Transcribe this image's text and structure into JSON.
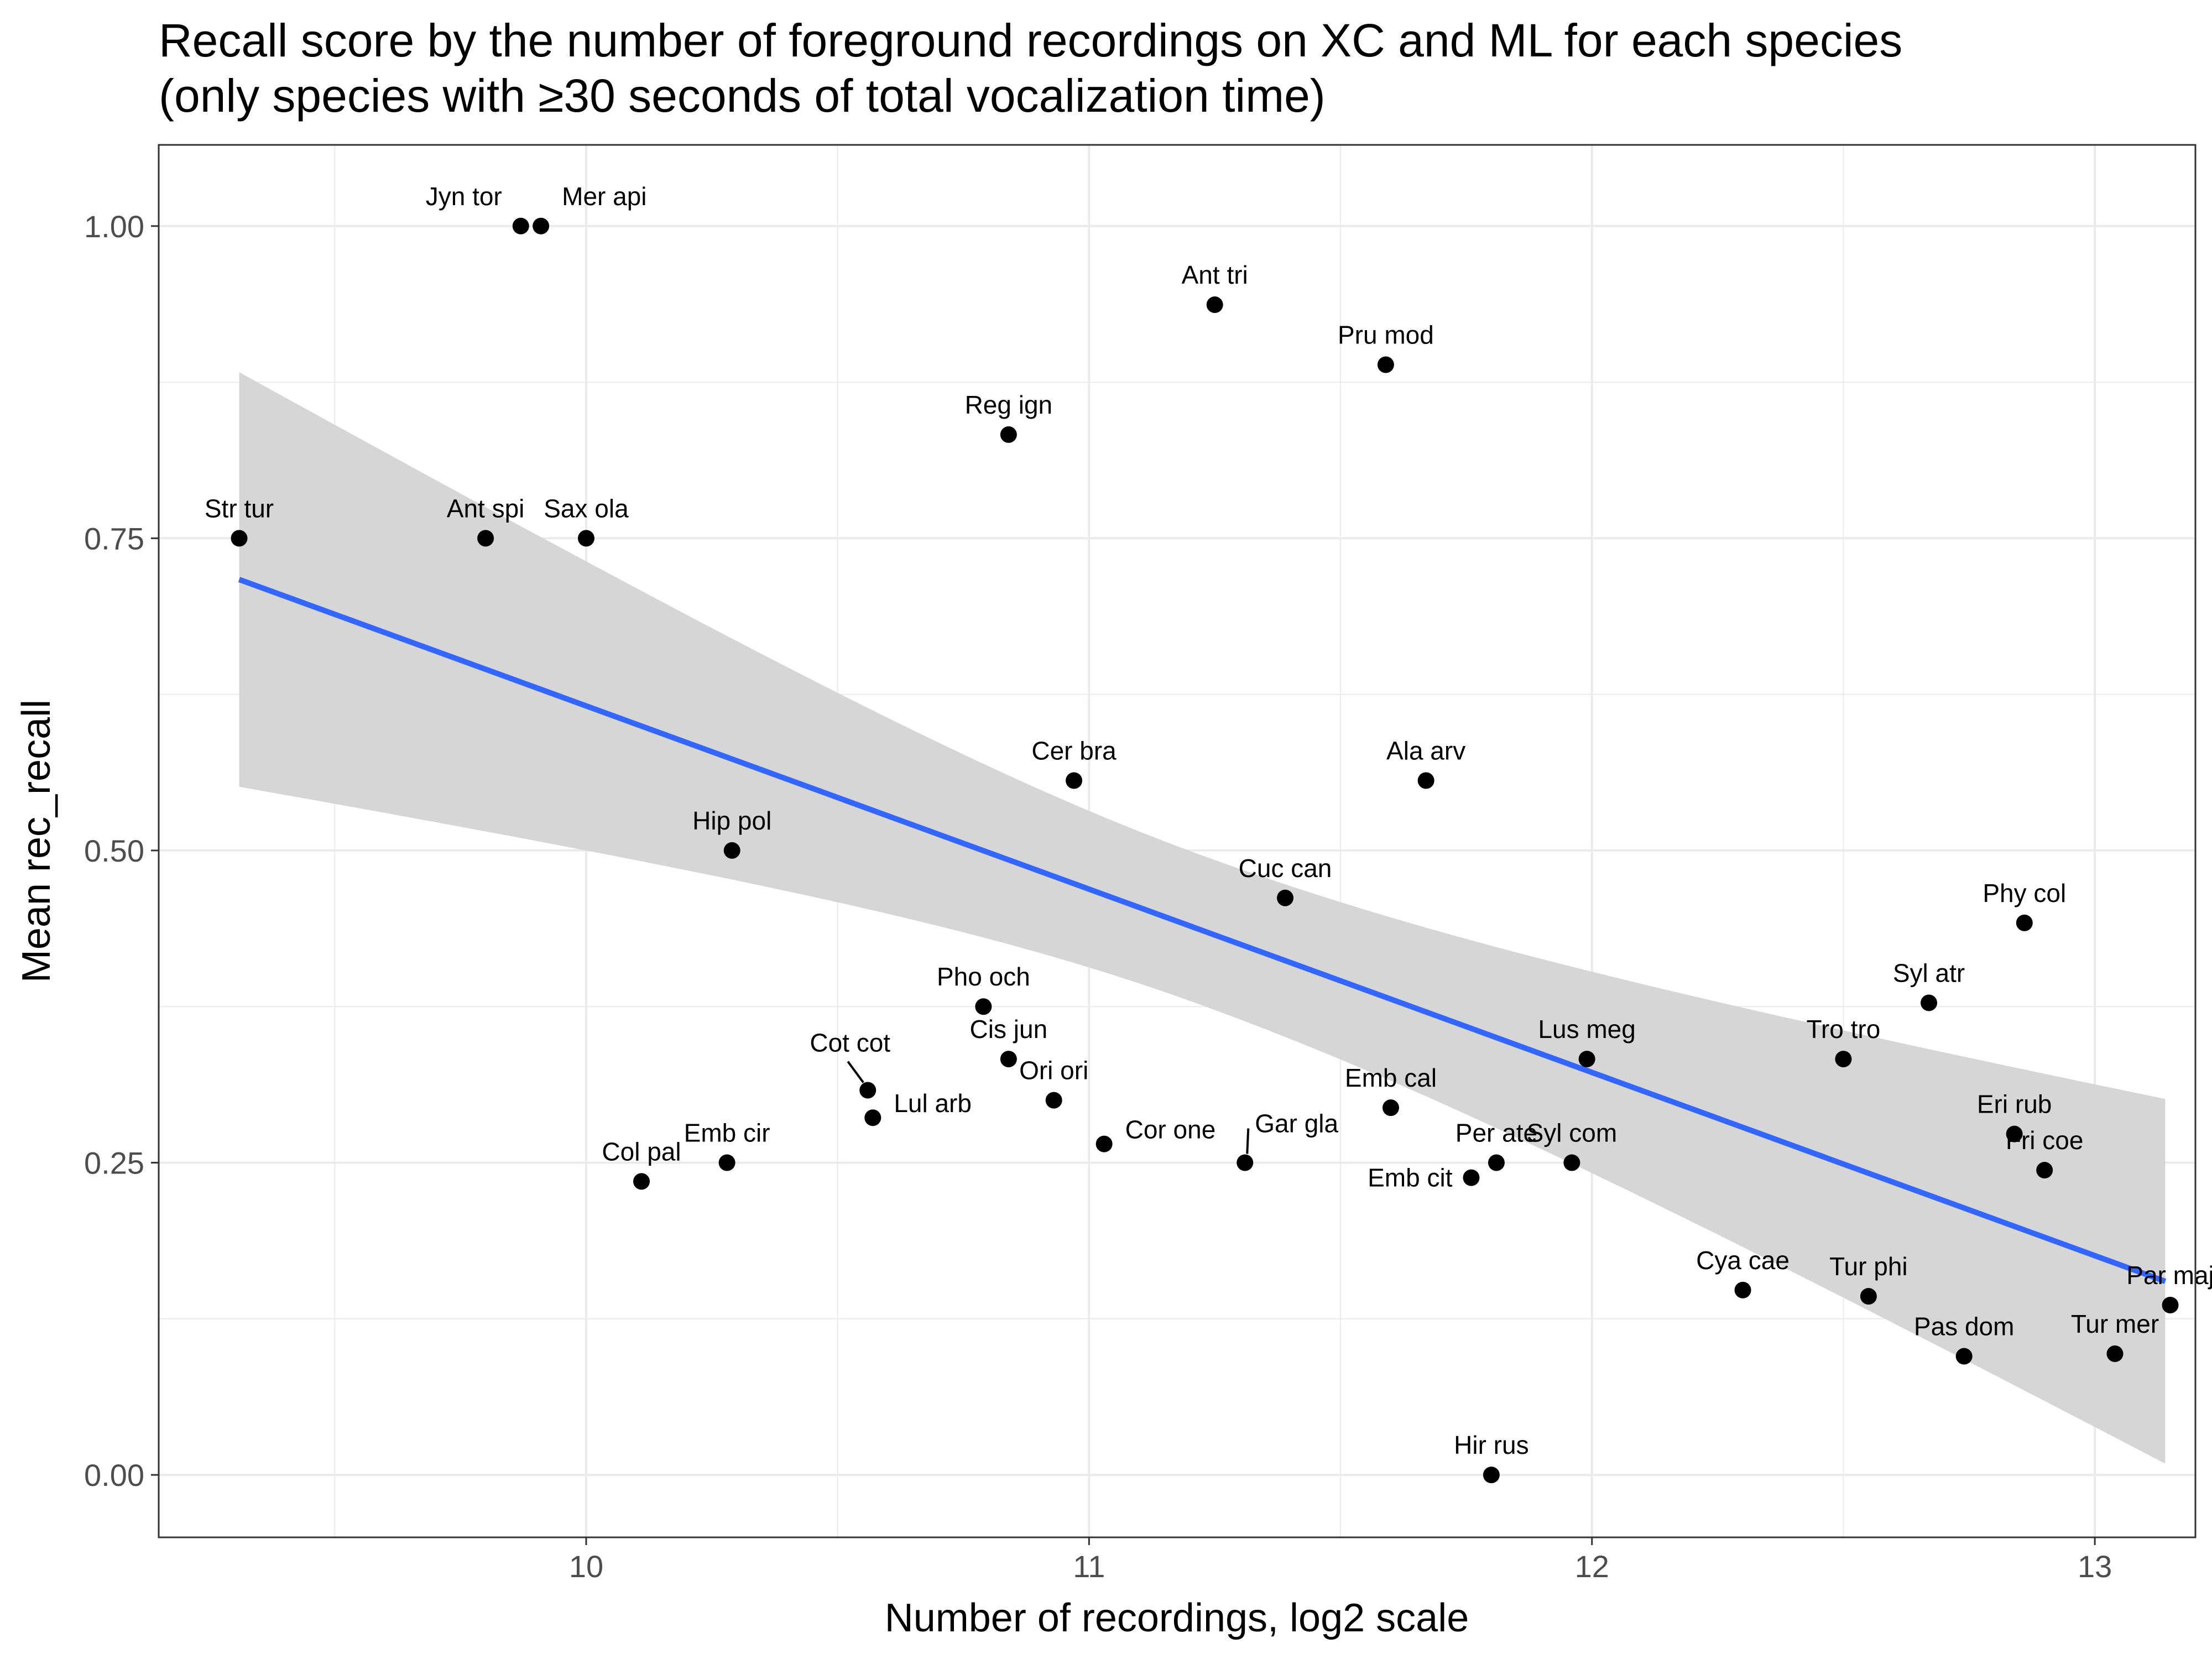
{
  "chart_data": {
    "type": "scatter",
    "title": "Recall score by the number of foreground recordings on XC and ML for each species",
    "subtitle": "(only species with ≥30 seconds of total vocalization time)",
    "xlabel": "Number of recordings, log2 scale",
    "ylabel": "Mean rec_recall",
    "xlim": [
      9.15,
      13.2
    ],
    "ylim": [
      -0.05,
      1.065
    ],
    "xticks": [
      10,
      11,
      12,
      13
    ],
    "xtick_labels": [
      "10",
      "11",
      "12",
      "13"
    ],
    "yticks": [
      0,
      0.25,
      0.5,
      0.75,
      1.0
    ],
    "ytick_labels": [
      "0.00",
      "0.25",
      "0.50",
      "0.75",
      "1.00"
    ],
    "grid": true,
    "theme": "bw",
    "point_color": "#000000",
    "trend": {
      "method": "linear",
      "color": "#3366ff",
      "band_color": "#d6d6d6",
      "x": [
        9.31,
        13.14
      ],
      "y": [
        0.717,
        0.155
      ],
      "band_lower": [
        0.552,
        0.008
      ],
      "band_upper": [
        0.884,
        0.3
      ]
    },
    "points": [
      {
        "label": "Jyn tor",
        "x": 9.87,
        "y": 1.0
      },
      {
        "label": "Mer api",
        "x": 9.91,
        "y": 1.0
      },
      {
        "label": "Ant tri",
        "x": 11.25,
        "y": 0.937
      },
      {
        "label": "Pru mod",
        "x": 11.59,
        "y": 0.889
      },
      {
        "label": "Reg ign",
        "x": 10.84,
        "y": 0.833
      },
      {
        "label": "Str tur",
        "x": 9.31,
        "y": 0.75
      },
      {
        "label": "Ant spi",
        "x": 9.8,
        "y": 0.75
      },
      {
        "label": "Sax ola",
        "x": 10.0,
        "y": 0.75
      },
      {
        "label": "Cer bra",
        "x": 10.97,
        "y": 0.556
      },
      {
        "label": "Ala arv",
        "x": 11.67,
        "y": 0.556
      },
      {
        "label": "Hip pol",
        "x": 10.29,
        "y": 0.5
      },
      {
        "label": "Cuc can",
        "x": 11.39,
        "y": 0.462
      },
      {
        "label": "Phy col",
        "x": 12.86,
        "y": 0.442
      },
      {
        "label": "Syl atr",
        "x": 12.67,
        "y": 0.378
      },
      {
        "label": "Pho och",
        "x": 10.79,
        "y": 0.375
      },
      {
        "label": "Cis jun",
        "x": 10.84,
        "y": 0.333
      },
      {
        "label": "Lus meg",
        "x": 11.99,
        "y": 0.333
      },
      {
        "label": "Tro tro",
        "x": 12.5,
        "y": 0.333
      },
      {
        "label": "Cot cot",
        "x": 10.56,
        "y": 0.308
      },
      {
        "label": "Ori ori",
        "x": 10.93,
        "y": 0.3
      },
      {
        "label": "Emb cal",
        "x": 11.6,
        "y": 0.294
      },
      {
        "label": "Lul arb",
        "x": 10.57,
        "y": 0.286
      },
      {
        "label": "Eri rub",
        "x": 12.84,
        "y": 0.273
      },
      {
        "label": "Cor one",
        "x": 11.03,
        "y": 0.265
      },
      {
        "label": "Gar gla",
        "x": 11.31,
        "y": 0.25
      },
      {
        "label": "Per ate",
        "x": 11.81,
        "y": 0.25
      },
      {
        "label": "Syl com",
        "x": 11.96,
        "y": 0.25
      },
      {
        "label": "Emb cir",
        "x": 10.28,
        "y": 0.25
      },
      {
        "label": "Fri coe",
        "x": 12.9,
        "y": 0.244
      },
      {
        "label": "Emb cit",
        "x": 11.76,
        "y": 0.238
      },
      {
        "label": "Col pal",
        "x": 10.11,
        "y": 0.235
      },
      {
        "label": "Cya cae",
        "x": 12.3,
        "y": 0.148
      },
      {
        "label": "Tur phi",
        "x": 12.55,
        "y": 0.143
      },
      {
        "label": "Par maj",
        "x": 13.15,
        "y": 0.136
      },
      {
        "label": "Tur mer",
        "x": 13.04,
        "y": 0.097
      },
      {
        "label": "Pas dom",
        "x": 12.74,
        "y": 0.095
      },
      {
        "label": "Hir rus",
        "x": 11.8,
        "y": 0.0
      }
    ]
  }
}
